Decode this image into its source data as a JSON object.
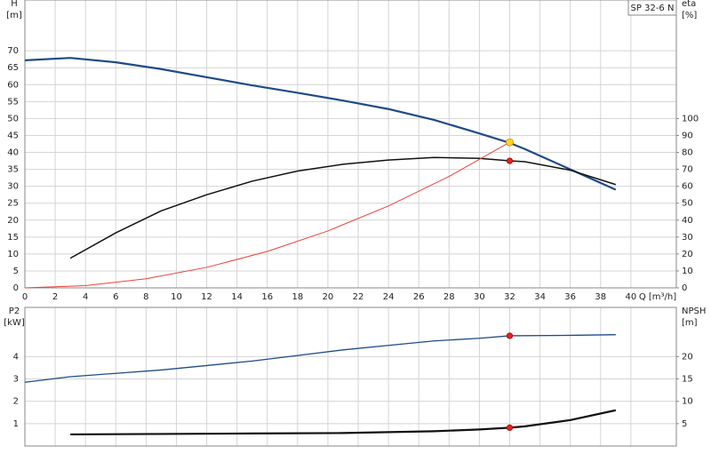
{
  "title": "SP 32-6 N",
  "chart_data": [
    {
      "type": "line",
      "y_label": "H",
      "y_unit": "[m]",
      "y2_label": "eta",
      "y2_unit": "[%]",
      "x_label": "Q [m³/h]",
      "xlim": [
        0,
        43
      ],
      "xticks": [
        0,
        2,
        4,
        6,
        8,
        10,
        12,
        14,
        16,
        18,
        20,
        22,
        24,
        26,
        28,
        30,
        32,
        34,
        36,
        38,
        40
      ],
      "ylim": [
        0,
        85
      ],
      "yticks": [
        0,
        5,
        10,
        15,
        20,
        25,
        30,
        35,
        40,
        45,
        50,
        55,
        60,
        65,
        70
      ],
      "y2lim": [
        0,
        170
      ],
      "y2ticks": [
        0,
        10,
        20,
        30,
        40,
        50,
        60,
        70,
        80,
        90,
        100
      ],
      "grid": true,
      "series": [
        {
          "color": "#1f4b87",
          "width": 2.2,
          "x": [
            0,
            3,
            6,
            9,
            12,
            15,
            18,
            21,
            24,
            27,
            30,
            32,
            33,
            36,
            39
          ],
          "values": [
            67.2,
            67.9,
            66.6,
            64.6,
            62.2,
            59.8,
            57.6,
            55.3,
            52.8,
            49.6,
            45.6,
            42.8,
            41,
            35,
            29
          ]
        },
        {
          "color": "#111111",
          "width": 1.5,
          "axis": "y2",
          "x": [
            3,
            6,
            9,
            12,
            15,
            18,
            21,
            24,
            27,
            30,
            32,
            33,
            36,
            39
          ],
          "values": [
            17.5,
            32.5,
            45.5,
            55,
            63,
            69,
            73,
            75.5,
            77,
            76.5,
            75,
            74.5,
            69.5,
            61
          ]
        },
        {
          "color": "#e8413a",
          "width": 1,
          "x": [
            0,
            4,
            8,
            12,
            16,
            20,
            24,
            28,
            32
          ],
          "values": [
            0,
            0.67,
            2.69,
            6.05,
            10.75,
            16.8,
            24.19,
            32.9,
            43
          ]
        }
      ],
      "points": [
        {
          "x": 32,
          "y": 43,
          "color": "#ffd21f"
        },
        {
          "x": 32,
          "y": 75,
          "axis": "y2",
          "color": "#e82020"
        }
      ]
    },
    {
      "type": "line",
      "y_label": "P2",
      "y_unit": "[kW]",
      "y2_label": "NPSH",
      "y2_unit": "[m]",
      "xlim": [
        0,
        43
      ],
      "ylim": [
        0,
        6.2
      ],
      "yticks": [
        1,
        2,
        3,
        4
      ],
      "y2lim": [
        0,
        31
      ],
      "y2ticks": [
        5,
        10,
        15,
        20
      ],
      "grid": true,
      "series": [
        {
          "color": "#1f4b87",
          "width": 1.3,
          "x": [
            0,
            3,
            6,
            9,
            12,
            15,
            18,
            21,
            24,
            27,
            30,
            32,
            36,
            39
          ],
          "values": [
            2.85,
            3.1,
            3.25,
            3.4,
            3.6,
            3.8,
            4.05,
            4.3,
            4.5,
            4.7,
            4.82,
            4.93,
            4.95,
            4.98
          ]
        },
        {
          "color": "#111111",
          "width": 2.2,
          "axis": "y2",
          "x": [
            3,
            9,
            15,
            21,
            27,
            30,
            32,
            33,
            36,
            39
          ],
          "values": [
            2.6,
            2.7,
            2.8,
            2.9,
            3.3,
            3.7,
            4.1,
            4.4,
            5.8,
            8
          ]
        }
      ],
      "points": [
        {
          "x": 32,
          "y": 4.93,
          "color": "#e82020"
        },
        {
          "x": 32,
          "y": 4.1,
          "axis": "y2",
          "color": "#e82020"
        }
      ]
    }
  ]
}
